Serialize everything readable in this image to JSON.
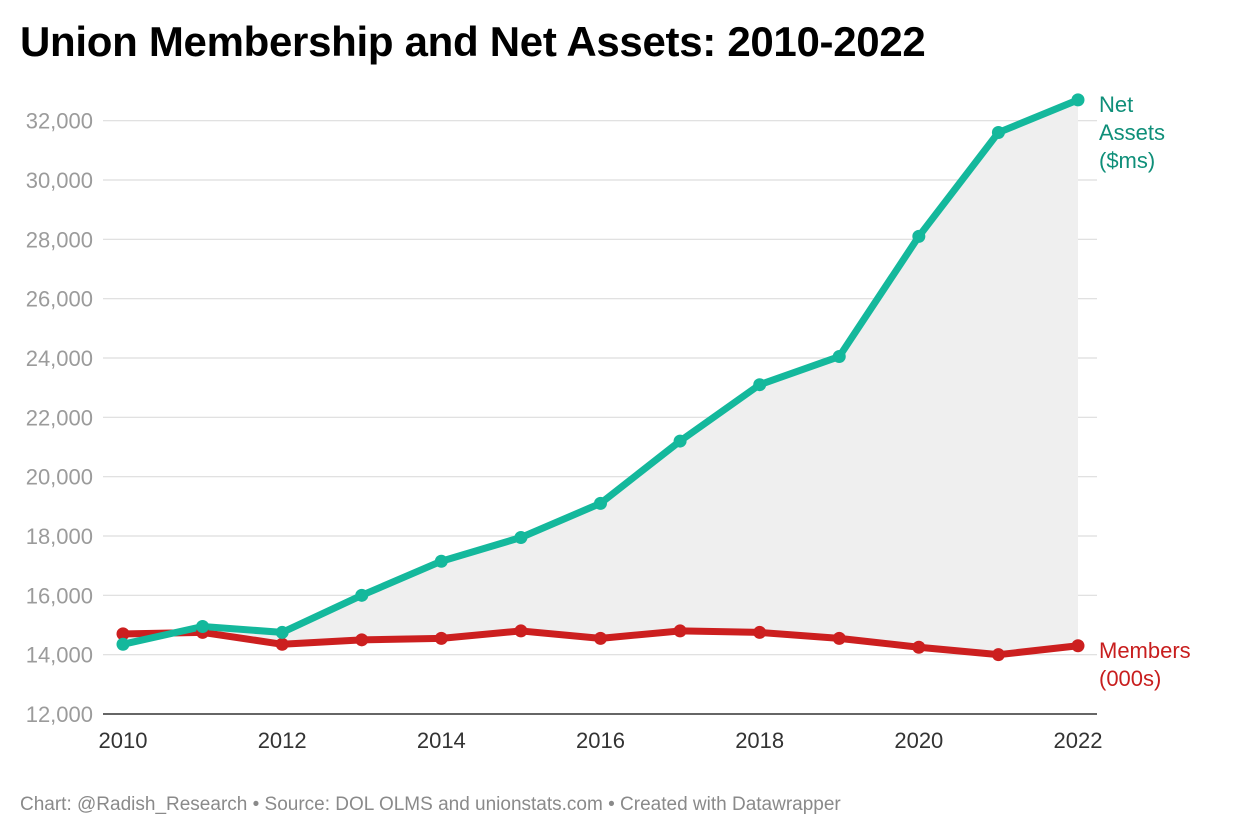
{
  "title": "Union Membership and Net Assets: 2010-2022",
  "footer": "Chart: @Radish_Research • Source: DOL OLMS and unionstats.com • Created with Datawrapper",
  "chart_data": {
    "type": "line",
    "title": "Union Membership and Net Assets: 2010-2022",
    "x": [
      2010,
      2011,
      2012,
      2013,
      2014,
      2015,
      2016,
      2017,
      2018,
      2019,
      2020,
      2021,
      2022
    ],
    "x_ticks": [
      "2010",
      "2012",
      "2014",
      "2016",
      "2018",
      "2020",
      "2022"
    ],
    "y_ticks": [
      "12,000",
      "14,000",
      "16,000",
      "18,000",
      "20,000",
      "22,000",
      "24,000",
      "26,000",
      "28,000",
      "30,000",
      "32,000"
    ],
    "ylim": [
      12000,
      33000
    ],
    "xlim": [
      2010,
      2022
    ],
    "grid": true,
    "legend": "direct labels at right end of lines",
    "shaded_area_between_series": true,
    "series": [
      {
        "name": "Net Assets ($ms)",
        "label_lines": [
          "Net",
          "Assets",
          "($ms)"
        ],
        "color": "#14b89c",
        "label_color": "#0f8f79",
        "values": [
          14350,
          14950,
          14750,
          16000,
          17150,
          17950,
          19100,
          21200,
          23100,
          24050,
          28100,
          31600,
          32700
        ]
      },
      {
        "name": "Members (000s)",
        "label_lines": [
          "Members",
          "(000s)"
        ],
        "color": "#cc1f1f",
        "label_color": "#c81e1e",
        "values": [
          14700,
          14750,
          14350,
          14500,
          14550,
          14800,
          14550,
          14800,
          14750,
          14550,
          14250,
          14000,
          14300
        ]
      }
    ],
    "area_color": "#efefef",
    "grid_color": "#dddddd"
  }
}
